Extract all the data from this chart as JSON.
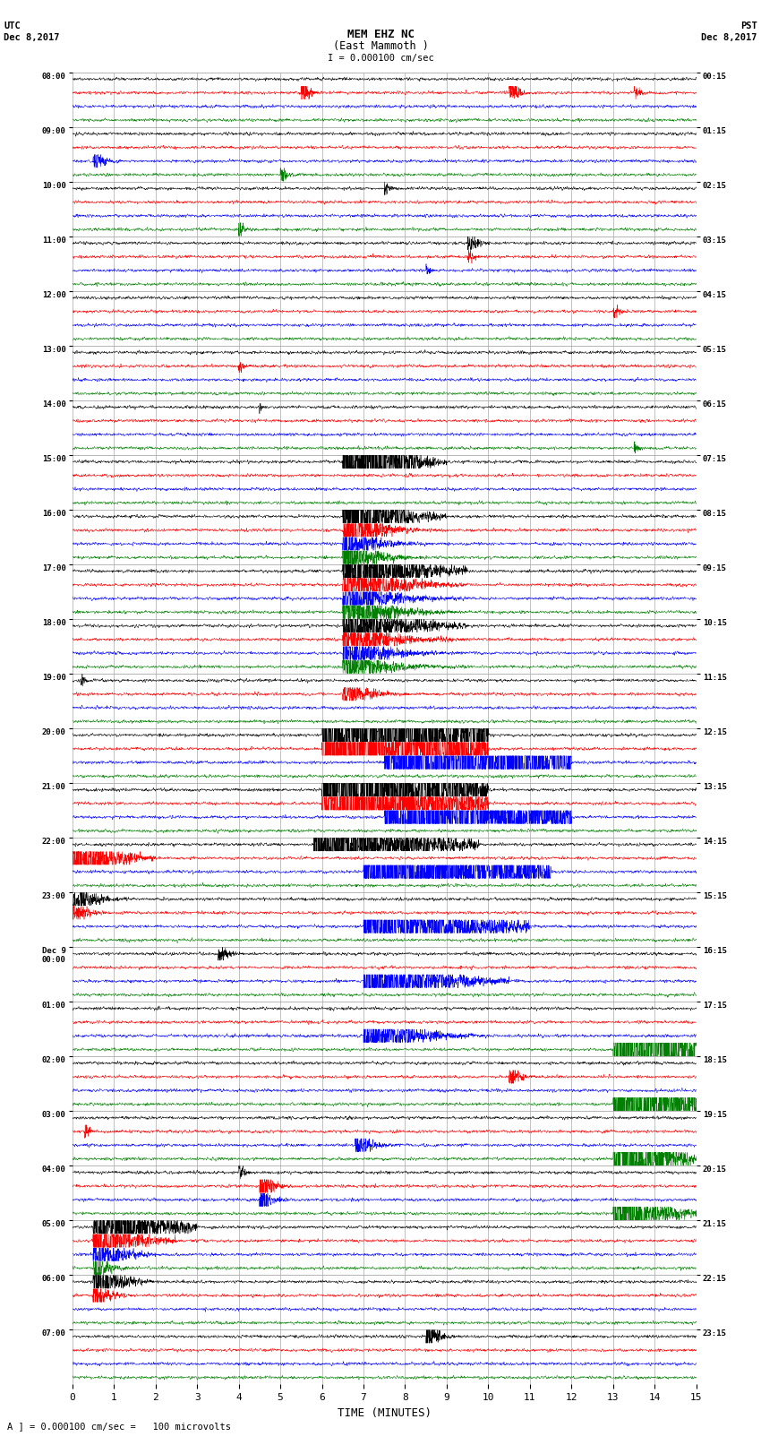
{
  "title_line1": "MEM EHZ NC",
  "title_line2": "(East Mammoth )",
  "scale_label": "I = 0.000100 cm/sec",
  "footer_label": "A ] = 0.000100 cm/sec =   100 microvolts",
  "utc_label": "UTC",
  "utc_date": "Dec 8,2017",
  "pst_label": "PST",
  "pst_date": "Dec 8,2017",
  "xlabel": "TIME (MINUTES)",
  "left_times": [
    "08:00",
    "09:00",
    "10:00",
    "11:00",
    "12:00",
    "13:00",
    "14:00",
    "15:00",
    "16:00",
    "17:00",
    "18:00",
    "19:00",
    "20:00",
    "21:00",
    "22:00",
    "23:00",
    "Dec 9\n00:00",
    "01:00",
    "02:00",
    "03:00",
    "04:00",
    "05:00",
    "06:00",
    "07:00"
  ],
  "right_times": [
    "00:15",
    "01:15",
    "02:15",
    "03:15",
    "04:15",
    "05:15",
    "06:15",
    "07:15",
    "08:15",
    "09:15",
    "10:15",
    "11:15",
    "12:15",
    "13:15",
    "14:15",
    "15:15",
    "16:15",
    "17:15",
    "18:15",
    "19:15",
    "20:15",
    "21:15",
    "22:15",
    "23:15"
  ],
  "n_rows": 24,
  "n_traces_per_row": 4,
  "colors": [
    "black",
    "red",
    "blue",
    "green"
  ],
  "bg_color": "white",
  "grid_color": "#aaaaaa",
  "fig_width": 8.5,
  "fig_height": 16.13,
  "dpi": 100,
  "minutes": 15,
  "noise_scale": 0.08,
  "earthquake_events": [
    {
      "row": 7,
      "trace": 0,
      "t0": 6.5,
      "amp": 6.0,
      "dur": 2.5,
      "decay": 5.0
    },
    {
      "row": 7,
      "trace": 0,
      "t0": 7.0,
      "amp": 8.0,
      "dur": 2.0,
      "decay": 4.0
    },
    {
      "row": 8,
      "trace": 0,
      "t0": 6.5,
      "amp": 7.0,
      "dur": 2.5,
      "decay": 4.0
    },
    {
      "row": 8,
      "trace": 1,
      "t0": 6.5,
      "amp": 2.5,
      "dur": 2.5,
      "decay": 4.5
    },
    {
      "row": 8,
      "trace": 2,
      "t0": 6.5,
      "amp": 2.0,
      "dur": 2.5,
      "decay": 5.0
    },
    {
      "row": 8,
      "trace": 3,
      "t0": 6.5,
      "amp": 2.0,
      "dur": 2.5,
      "decay": 5.0
    },
    {
      "row": 9,
      "trace": 0,
      "t0": 6.5,
      "amp": 4.0,
      "dur": 3.0,
      "decay": 3.0
    },
    {
      "row": 9,
      "trace": 1,
      "t0": 6.5,
      "amp": 2.5,
      "dur": 3.0,
      "decay": 3.5
    },
    {
      "row": 9,
      "trace": 2,
      "t0": 6.5,
      "amp": 2.0,
      "dur": 3.0,
      "decay": 4.0
    },
    {
      "row": 9,
      "trace": 3,
      "t0": 6.5,
      "amp": 2.0,
      "dur": 3.0,
      "decay": 4.0
    },
    {
      "row": 10,
      "trace": 0,
      "t0": 6.5,
      "amp": 2.5,
      "dur": 3.0,
      "decay": 3.0
    },
    {
      "row": 10,
      "trace": 1,
      "t0": 6.5,
      "amp": 1.5,
      "dur": 3.0,
      "decay": 3.5
    },
    {
      "row": 10,
      "trace": 2,
      "t0": 6.5,
      "amp": 1.5,
      "dur": 3.0,
      "decay": 4.0
    },
    {
      "row": 10,
      "trace": 3,
      "t0": 6.5,
      "amp": 1.5,
      "dur": 3.0,
      "decay": 4.0
    },
    {
      "row": 11,
      "trace": 1,
      "t0": 6.5,
      "amp": 1.0,
      "dur": 2.0,
      "decay": 4.0
    },
    {
      "row": 3,
      "trace": 0,
      "t0": 9.5,
      "amp": 1.5,
      "dur": 0.8,
      "decay": 6.0
    },
    {
      "row": 3,
      "trace": 1,
      "t0": 9.5,
      "amp": 1.0,
      "dur": 0.5,
      "decay": 6.0
    },
    {
      "row": 11,
      "trace": 0,
      "t0": 0.2,
      "amp": 0.6,
      "dur": 0.5,
      "decay": 6.0
    },
    {
      "row": 12,
      "trace": 0,
      "t0": 6.0,
      "amp": 8.0,
      "dur": 4.0,
      "decay": 1.5
    },
    {
      "row": 12,
      "trace": 1,
      "t0": 6.0,
      "amp": 8.0,
      "dur": 4.0,
      "decay": 1.5
    },
    {
      "row": 13,
      "trace": 0,
      "t0": 6.0,
      "amp": 6.0,
      "dur": 4.0,
      "decay": 1.8
    },
    {
      "row": 13,
      "trace": 1,
      "t0": 6.0,
      "amp": 5.0,
      "dur": 4.0,
      "decay": 2.0
    },
    {
      "row": 14,
      "trace": 0,
      "t0": 5.8,
      "amp": 3.5,
      "dur": 4.0,
      "decay": 2.5
    },
    {
      "row": 14,
      "trace": 1,
      "t0": 0.0,
      "amp": 2.5,
      "dur": 2.0,
      "decay": 3.0
    },
    {
      "row": 15,
      "trace": 0,
      "t0": 0.0,
      "amp": 1.5,
      "dur": 1.5,
      "decay": 4.0
    },
    {
      "row": 15,
      "trace": 1,
      "t0": 0.0,
      "amp": 1.2,
      "dur": 1.0,
      "decay": 4.5
    },
    {
      "row": 12,
      "trace": 2,
      "t0": 7.5,
      "amp": 8.0,
      "dur": 4.5,
      "decay": 1.5
    },
    {
      "row": 13,
      "trace": 2,
      "t0": 7.5,
      "amp": 7.0,
      "dur": 4.5,
      "decay": 1.8
    },
    {
      "row": 14,
      "trace": 2,
      "t0": 7.0,
      "amp": 5.5,
      "dur": 4.5,
      "decay": 2.0
    },
    {
      "row": 15,
      "trace": 2,
      "t0": 7.0,
      "amp": 4.0,
      "dur": 4.0,
      "decay": 2.5
    },
    {
      "row": 16,
      "trace": 2,
      "t0": 7.0,
      "amp": 3.0,
      "dur": 3.5,
      "decay": 3.0
    },
    {
      "row": 17,
      "trace": 2,
      "t0": 7.0,
      "amp": 2.0,
      "dur": 3.0,
      "decay": 3.5
    },
    {
      "row": 17,
      "trace": 3,
      "t0": 13.0,
      "amp": 8.0,
      "dur": 2.5,
      "decay": 1.5
    },
    {
      "row": 18,
      "trace": 3,
      "t0": 13.0,
      "amp": 7.0,
      "dur": 2.5,
      "decay": 1.8
    },
    {
      "row": 19,
      "trace": 3,
      "t0": 13.0,
      "amp": 5.0,
      "dur": 2.5,
      "decay": 2.5
    },
    {
      "row": 20,
      "trace": 3,
      "t0": 13.0,
      "amp": 3.5,
      "dur": 2.5,
      "decay": 3.0
    },
    {
      "row": 18,
      "trace": 1,
      "t0": 10.5,
      "amp": 1.0,
      "dur": 1.0,
      "decay": 5.0
    },
    {
      "row": 19,
      "trace": 1,
      "t0": 0.3,
      "amp": 0.8,
      "dur": 0.5,
      "decay": 6.0
    },
    {
      "row": 19,
      "trace": 2,
      "t0": 6.8,
      "amp": 1.5,
      "dur": 1.0,
      "decay": 4.0
    },
    {
      "row": 20,
      "trace": 0,
      "t0": 4.0,
      "amp": 1.0,
      "dur": 0.5,
      "decay": 5.0
    },
    {
      "row": 20,
      "trace": 1,
      "t0": 4.5,
      "amp": 2.0,
      "dur": 0.8,
      "decay": 4.0
    },
    {
      "row": 20,
      "trace": 2,
      "t0": 4.5,
      "amp": 1.5,
      "dur": 0.8,
      "decay": 4.5
    },
    {
      "row": 21,
      "trace": 0,
      "t0": 0.5,
      "amp": 3.5,
      "dur": 2.5,
      "decay": 2.5
    },
    {
      "row": 21,
      "trace": 1,
      "t0": 0.5,
      "amp": 2.5,
      "dur": 2.0,
      "decay": 3.0
    },
    {
      "row": 21,
      "trace": 2,
      "t0": 0.5,
      "amp": 2.0,
      "dur": 1.5,
      "decay": 3.5
    },
    {
      "row": 21,
      "trace": 3,
      "t0": 0.5,
      "amp": 1.5,
      "dur": 1.0,
      "decay": 4.0
    },
    {
      "row": 22,
      "trace": 0,
      "t0": 0.5,
      "amp": 2.0,
      "dur": 1.5,
      "decay": 3.5
    },
    {
      "row": 22,
      "trace": 1,
      "t0": 0.5,
      "amp": 1.5,
      "dur": 1.0,
      "decay": 4.0
    },
    {
      "row": 23,
      "trace": 0,
      "t0": 8.5,
      "amp": 1.5,
      "dur": 1.0,
      "decay": 5.0
    },
    {
      "row": 16,
      "trace": 0,
      "t0": 3.5,
      "amp": 1.0,
      "dur": 0.8,
      "decay": 5.0
    },
    {
      "row": 6,
      "trace": 3,
      "t0": 13.5,
      "amp": 0.6,
      "dur": 0.5,
      "decay": 6.0
    },
    {
      "row": 5,
      "trace": 1,
      "t0": 4.0,
      "amp": 0.8,
      "dur": 0.5,
      "decay": 6.0
    },
    {
      "row": 1,
      "trace": 2,
      "t0": 0.5,
      "amp": 1.2,
      "dur": 0.8,
      "decay": 5.0
    },
    {
      "row": 1,
      "trace": 3,
      "t0": 5.0,
      "amp": 0.8,
      "dur": 0.5,
      "decay": 5.0
    },
    {
      "row": 2,
      "trace": 3,
      "t0": 4.0,
      "amp": 0.8,
      "dur": 0.5,
      "decay": 5.0
    },
    {
      "row": 0,
      "trace": 1,
      "t0": 5.5,
      "amp": 1.0,
      "dur": 0.8,
      "decay": 5.0
    },
    {
      "row": 0,
      "trace": 1,
      "t0": 10.5,
      "amp": 1.2,
      "dur": 0.8,
      "decay": 5.0
    },
    {
      "row": 0,
      "trace": 1,
      "t0": 13.5,
      "amp": 0.8,
      "dur": 0.5,
      "decay": 5.0
    },
    {
      "row": 4,
      "trace": 1,
      "t0": 13.0,
      "amp": 0.8,
      "dur": 0.5,
      "decay": 5.0
    },
    {
      "row": 6,
      "trace": 0,
      "t0": 4.5,
      "amp": 0.5,
      "dur": 0.3,
      "decay": 7.0
    },
    {
      "row": 2,
      "trace": 0,
      "t0": 7.5,
      "amp": 0.8,
      "dur": 0.5,
      "decay": 6.0
    },
    {
      "row": 3,
      "trace": 2,
      "t0": 8.5,
      "amp": 0.6,
      "dur": 0.5,
      "decay": 6.0
    }
  ]
}
